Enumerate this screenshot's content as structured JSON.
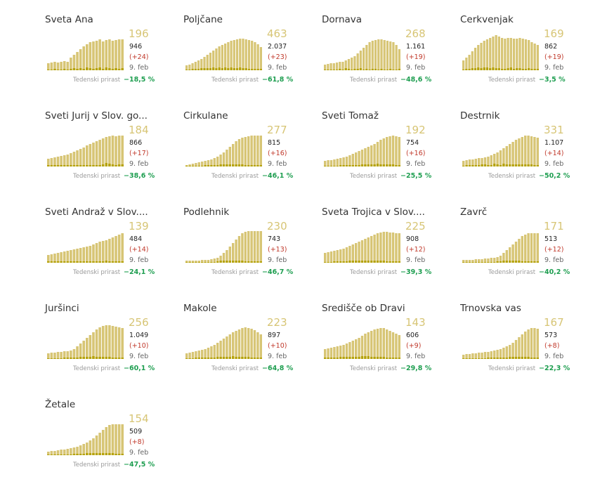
{
  "ui": {
    "growth_label": "Tedenski prirast"
  },
  "colors": {
    "active": "#d7c575",
    "new": "#b5a20a",
    "growth": "#1e9e50",
    "new_text": "#c0392b"
  },
  "chart_data": [
    {
      "type": "bar",
      "title": "Sveta Ana",
      "active": "196",
      "total": "946",
      "new": "(+24)",
      "date": "9. feb",
      "growth": "−18,5 %",
      "active_series": [
        10,
        11,
        12,
        11,
        12,
        13,
        12,
        18,
        22,
        26,
        30,
        34,
        37,
        40,
        41,
        42,
        44,
        41,
        43,
        44,
        42,
        43,
        44,
        44
      ],
      "new_series": [
        1,
        1,
        2,
        1,
        1,
        2,
        1,
        2,
        3,
        2,
        3,
        2,
        4,
        3,
        2,
        3,
        4,
        2,
        4,
        3,
        2,
        3,
        2,
        3
      ]
    },
    {
      "type": "bar",
      "title": "Poljčane",
      "active": "463",
      "total": "2.037",
      "new": "(+23)",
      "date": "9. feb",
      "growth": "−61,8 %",
      "active_series": [
        7,
        8,
        10,
        12,
        14,
        16,
        19,
        22,
        25,
        28,
        31,
        34,
        36,
        38,
        40,
        42,
        43,
        44,
        45,
        45,
        44,
        43,
        42,
        40,
        37,
        33
      ],
      "new_series": [
        1,
        1,
        2,
        2,
        2,
        3,
        3,
        3,
        3,
        4,
        3,
        4,
        3,
        4,
        3,
        4,
        3,
        3,
        4,
        3,
        3,
        2,
        2,
        2,
        2,
        2
      ]
    },
    {
      "type": "bar",
      "title": "Dornava",
      "active": "268",
      "total": "1.161",
      "new": "(+19)",
      "date": "9. feb",
      "growth": "−48,6 %",
      "active_series": [
        8,
        9,
        10,
        10,
        11,
        12,
        12,
        14,
        16,
        18,
        20,
        24,
        28,
        32,
        36,
        40,
        42,
        43,
        44,
        44,
        43,
        42,
        41,
        40,
        36,
        30
      ],
      "new_series": [
        1,
        1,
        1,
        1,
        1,
        2,
        1,
        3,
        2,
        1,
        2,
        2,
        3,
        1,
        2,
        1,
        2,
        2,
        1,
        2,
        1,
        1,
        2,
        1,
        1,
        2
      ]
    },
    {
      "type": "bar",
      "title": "Cerkvenjak",
      "active": "169",
      "total": "862",
      "new": "(+19)",
      "date": "9. feb",
      "growth": "−3,5 %",
      "active_series": [
        14,
        18,
        22,
        27,
        32,
        36,
        39,
        42,
        44,
        46,
        48,
        50,
        48,
        46,
        45,
        46,
        46,
        45,
        45,
        46,
        45,
        44,
        43,
        40,
        38,
        36
      ],
      "new_series": [
        1,
        2,
        2,
        3,
        3,
        4,
        3,
        4,
        4,
        3,
        4,
        3,
        3,
        2,
        2,
        3,
        4,
        2,
        3,
        3,
        2,
        2,
        3,
        2,
        2,
        2
      ]
    },
    {
      "type": "bar",
      "title": "Sveti Jurij v Slov. go...",
      "active": "184",
      "total": "866",
      "new": "(+17)",
      "date": "9. feb",
      "growth": "−38,6 %",
      "active_series": [
        11,
        12,
        13,
        14,
        15,
        16,
        17,
        19,
        21,
        23,
        25,
        27,
        30,
        32,
        34,
        36,
        38,
        40,
        42,
        43,
        44,
        43,
        44,
        44
      ],
      "new_series": [
        2,
        2,
        2,
        2,
        2,
        2,
        2,
        2,
        2,
        2,
        2,
        2,
        2,
        2,
        2,
        2,
        2,
        3,
        5,
        4,
        3,
        2,
        3,
        3
      ]
    },
    {
      "type": "bar",
      "title": "Cirkulane",
      "active": "277",
      "total": "815",
      "new": "(+16)",
      "date": "9. feb",
      "growth": "−46,1 %",
      "active_series": [
        2,
        3,
        4,
        5,
        6,
        7,
        8,
        9,
        10,
        12,
        14,
        17,
        20,
        24,
        28,
        32,
        36,
        39,
        41,
        42,
        43,
        44,
        44,
        44,
        44
      ],
      "new_series": [
        1,
        1,
        1,
        1,
        1,
        1,
        2,
        2,
        2,
        2,
        2,
        3,
        3,
        3,
        3,
        3,
        3,
        3,
        3,
        2,
        2,
        2,
        2,
        2,
        2
      ]
    },
    {
      "type": "bar",
      "title": "Sveti Tomaž",
      "active": "192",
      "total": "754",
      "new": "(+16)",
      "date": "9. feb",
      "growth": "−25,5 %",
      "active_series": [
        8,
        9,
        9,
        10,
        11,
        12,
        13,
        14,
        16,
        18,
        20,
        22,
        24,
        26,
        28,
        30,
        32,
        35,
        38,
        40,
        42,
        43,
        44,
        43,
        42
      ],
      "new_series": [
        1,
        1,
        1,
        1,
        1,
        2,
        2,
        2,
        2,
        2,
        2,
        2,
        3,
        3,
        3,
        3,
        3,
        4,
        3,
        3,
        3,
        3,
        3,
        2,
        2
      ]
    },
    {
      "type": "bar",
      "title": "Destrnik",
      "active": "331",
      "total": "1.107",
      "new": "(+14)",
      "date": "9. feb",
      "growth": "−50,2 %",
      "active_series": [
        8,
        9,
        10,
        10,
        11,
        12,
        12,
        13,
        14,
        16,
        18,
        20,
        23,
        26,
        29,
        32,
        35,
        38,
        40,
        42,
        44,
        44,
        43,
        42,
        41
      ],
      "new_series": [
        1,
        2,
        2,
        2,
        2,
        2,
        3,
        3,
        2,
        2,
        4,
        3,
        2,
        4,
        3,
        3,
        3,
        3,
        3,
        3,
        3,
        3,
        3,
        2,
        2
      ]
    },
    {
      "type": "bar",
      "title": "Sveti Andraž v Slov....",
      "active": "139",
      "total": "484",
      "new": "(+14)",
      "date": "9. feb",
      "growth": "−24,1 %",
      "active_series": [
        11,
        12,
        13,
        14,
        15,
        16,
        17,
        18,
        19,
        20,
        21,
        22,
        23,
        24,
        26,
        28,
        30,
        31,
        32,
        34,
        36,
        38,
        40,
        42
      ],
      "new_series": [
        2,
        2,
        2,
        2,
        2,
        2,
        2,
        2,
        2,
        2,
        2,
        2,
        2,
        2,
        2,
        2,
        2,
        2,
        3,
        2,
        2,
        2,
        2,
        2
      ]
    },
    {
      "type": "bar",
      "title": "Podlehnik",
      "active": "230",
      "total": "743",
      "new": "(+13)",
      "date": "9. feb",
      "growth": "−46,7 %",
      "active_series": [
        3,
        3,
        3,
        3,
        3,
        4,
        4,
        4,
        5,
        6,
        7,
        10,
        14,
        18,
        23,
        28,
        33,
        38,
        42,
        44,
        45,
        45,
        45,
        45,
        45
      ],
      "new_series": [
        1,
        1,
        1,
        1,
        1,
        1,
        1,
        1,
        1,
        1,
        2,
        3,
        3,
        3,
        3,
        3,
        3,
        3,
        3,
        2,
        2,
        2,
        2,
        2,
        2
      ]
    },
    {
      "type": "bar",
      "title": "Sveta Trojica v Slov....",
      "active": "225",
      "total": "908",
      "new": "(+12)",
      "date": "9. feb",
      "growth": "−39,3 %",
      "active_series": [
        14,
        15,
        16,
        17,
        18,
        19,
        20,
        22,
        24,
        26,
        28,
        30,
        32,
        34,
        36,
        38,
        40,
        42,
        43,
        44,
        44,
        43,
        43,
        42,
        42
      ],
      "new_series": [
        1,
        1,
        1,
        2,
        2,
        2,
        2,
        2,
        3,
        3,
        3,
        3,
        3,
        3,
        3,
        3,
        3,
        3,
        3,
        3,
        2,
        2,
        2,
        2,
        2
      ]
    },
    {
      "type": "bar",
      "title": "Zavrč",
      "active": "171",
      "total": "513",
      "new": "(+12)",
      "date": "9. feb",
      "growth": "−40,2 %",
      "active_series": [
        4,
        4,
        4,
        4,
        5,
        5,
        5,
        6,
        6,
        7,
        7,
        8,
        10,
        14,
        18,
        22,
        26,
        30,
        34,
        38,
        40,
        42,
        42,
        42,
        42
      ],
      "new_series": [
        1,
        1,
        1,
        1,
        1,
        1,
        1,
        1,
        1,
        1,
        1,
        2,
        2,
        3,
        3,
        3,
        3,
        3,
        3,
        2,
        2,
        2,
        2,
        2,
        2
      ]
    },
    {
      "type": "bar",
      "title": "Juršinci",
      "active": "256",
      "total": "1.049",
      "new": "(+10)",
      "date": "9. feb",
      "growth": "−60,1 %",
      "active_series": [
        8,
        9,
        9,
        10,
        10,
        11,
        11,
        12,
        14,
        18,
        22,
        26,
        30,
        34,
        38,
        42,
        45,
        47,
        48,
        48,
        47,
        46,
        45,
        44
      ],
      "new_series": [
        1,
        1,
        1,
        1,
        1,
        2,
        2,
        2,
        2,
        2,
        3,
        3,
        3,
        3,
        4,
        3,
        3,
        3,
        3,
        3,
        2,
        2,
        2,
        2
      ]
    },
    {
      "type": "bar",
      "title": "Makole",
      "active": "223",
      "total": "897",
      "new": "(+10)",
      "date": "9. feb",
      "growth": "−64,8 %",
      "active_series": [
        8,
        9,
        10,
        11,
        12,
        13,
        14,
        16,
        18,
        20,
        23,
        26,
        29,
        32,
        35,
        38,
        40,
        42,
        44,
        45,
        44,
        43,
        41,
        38,
        35
      ],
      "new_series": [
        1,
        1,
        1,
        2,
        2,
        2,
        2,
        2,
        2,
        2,
        3,
        3,
        3,
        3,
        3,
        4,
        3,
        3,
        3,
        3,
        3,
        2,
        2,
        2,
        2
      ]
    },
    {
      "type": "bar",
      "title": "Središče ob Dravi",
      "active": "143",
      "total": "606",
      "new": "(+9)",
      "date": "9. feb",
      "growth": "−29,8 %",
      "active_series": [
        14,
        15,
        16,
        17,
        18,
        19,
        20,
        22,
        24,
        26,
        28,
        30,
        33,
        36,
        38,
        40,
        42,
        43,
        44,
        44,
        42,
        40,
        38,
        36,
        34
      ],
      "new_series": [
        2,
        2,
        2,
        2,
        2,
        3,
        3,
        3,
        3,
        3,
        3,
        3,
        4,
        4,
        4,
        3,
        3,
        3,
        3,
        3,
        2,
        2,
        2,
        2,
        2
      ]
    },
    {
      "type": "bar",
      "title": "Trnovska vas",
      "active": "167",
      "total": "573",
      "new": "(+8)",
      "date": "9. feb",
      "growth": "−22,3 %",
      "active_series": [
        6,
        7,
        7,
        8,
        8,
        9,
        9,
        10,
        10,
        11,
        12,
        13,
        14,
        16,
        18,
        20,
        23,
        27,
        31,
        35,
        39,
        42,
        44,
        44,
        43
      ],
      "new_series": [
        1,
        1,
        1,
        1,
        1,
        1,
        1,
        1,
        2,
        2,
        2,
        2,
        2,
        2,
        2,
        3,
        3,
        3,
        3,
        3,
        3,
        3,
        2,
        2,
        2
      ]
    },
    {
      "type": "bar",
      "title": "Žetale",
      "active": "154",
      "total": "509",
      "new": "(+8)",
      "date": "9. feb",
      "growth": "−47,5 %",
      "active_series": [
        5,
        6,
        6,
        7,
        8,
        8,
        9,
        10,
        11,
        12,
        14,
        16,
        18,
        21,
        24,
        28,
        32,
        36,
        40,
        43,
        44,
        44,
        44,
        44
      ],
      "new_series": [
        1,
        1,
        1,
        1,
        1,
        1,
        1,
        1,
        2,
        2,
        2,
        2,
        3,
        3,
        3,
        3,
        3,
        3,
        3,
        3,
        3,
        2,
        2,
        2
      ]
    }
  ]
}
